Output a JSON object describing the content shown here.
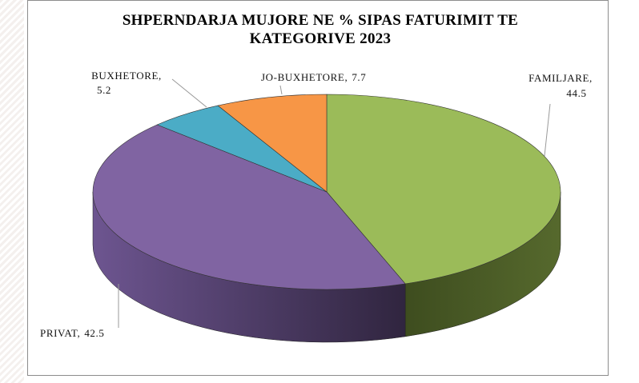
{
  "chart_data": {
    "type": "pie3d",
    "title": "SHPERNDARJA MUJORE NE % SIPAS FATURIMIT TE KATEGORIVE 2023",
    "categories": [
      "FAMILJARE,",
      "PRIVAT,",
      "BUXHETORE,",
      "JO-BUXHETORE,"
    ],
    "values": [
      44.5,
      42.5,
      5.2,
      7.7
    ],
    "colors": [
      "#9bbb59",
      "#8064a2",
      "#4bacc6",
      "#f79646"
    ]
  }
}
